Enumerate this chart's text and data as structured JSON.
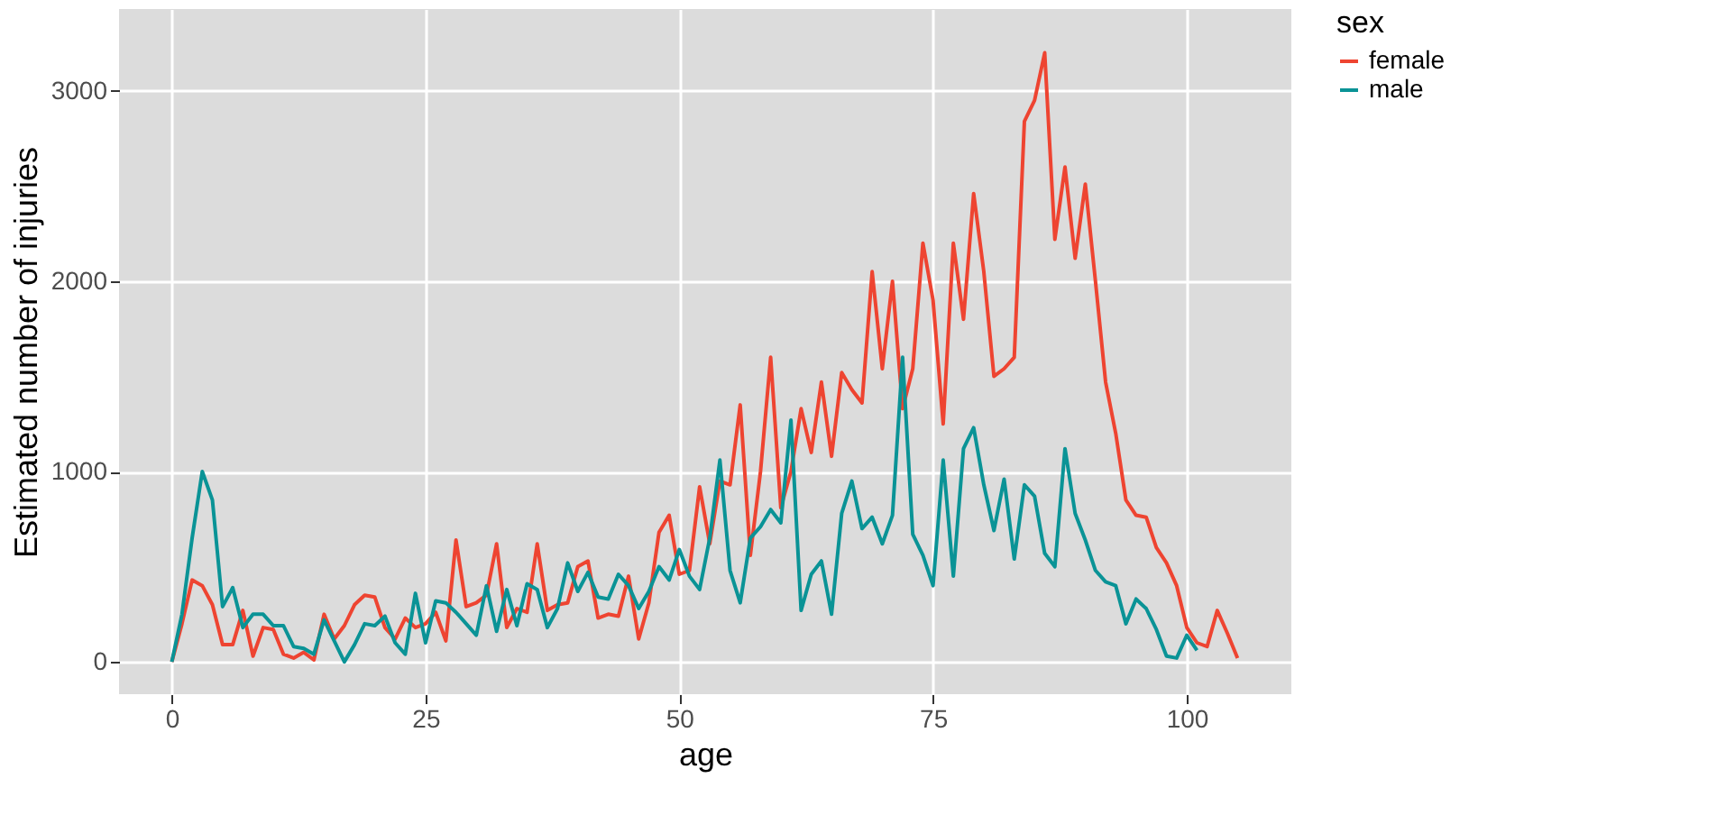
{
  "chart_data": {
    "type": "line",
    "xlabel": "age",
    "ylabel": "Estimated number of injuries",
    "legend_title": "sex",
    "x": [
      0,
      1,
      2,
      3,
      4,
      5,
      6,
      7,
      8,
      9,
      10,
      11,
      12,
      13,
      14,
      15,
      16,
      17,
      18,
      19,
      20,
      21,
      22,
      23,
      24,
      25,
      26,
      27,
      28,
      29,
      30,
      31,
      32,
      33,
      34,
      35,
      36,
      37,
      38,
      39,
      40,
      41,
      42,
      43,
      44,
      45,
      46,
      47,
      48,
      49,
      50,
      51,
      52,
      53,
      54,
      55,
      56,
      57,
      58,
      59,
      60,
      61,
      62,
      63,
      64,
      65,
      66,
      67,
      68,
      69,
      70,
      71,
      72,
      73,
      74,
      75,
      76,
      77,
      78,
      79,
      80,
      81,
      82,
      83,
      84,
      85,
      86,
      87,
      88,
      89,
      90,
      91,
      92,
      93,
      94,
      95,
      96,
      97,
      98,
      99,
      100,
      101,
      102,
      103,
      104,
      105
    ],
    "series": [
      {
        "name": "female",
        "color": "#ee4431",
        "values": [
          0,
          200,
          430,
          400,
          300,
          90,
          90,
          270,
          30,
          180,
          170,
          40,
          20,
          50,
          10,
          250,
          120,
          190,
          300,
          350,
          340,
          180,
          120,
          230,
          180,
          200,
          260,
          110,
          640,
          290,
          310,
          350,
          620,
          180,
          280,
          260,
          620,
          270,
          300,
          310,
          500,
          530,
          230,
          250,
          240,
          450,
          120,
          310,
          680,
          770,
          460,
          480,
          920,
          620,
          950,
          930,
          1350,
          560,
          1000,
          1600,
          810,
          1000,
          1330,
          1100,
          1470,
          1080,
          1520,
          1430,
          1360,
          2050,
          1540,
          2000,
          1330,
          1540,
          2200,
          1900,
          1250,
          2200,
          1800,
          2460,
          2050,
          1500,
          1540,
          1600,
          2840,
          2950,
          3200,
          2220,
          2600,
          2120,
          2510,
          2000,
          1470,
          1200,
          850,
          770,
          760,
          600,
          520,
          400,
          180,
          100,
          80,
          270,
          150,
          20
        ]
      },
      {
        "name": "male",
        "color": "#0a9396",
        "values": [
          0,
          250,
          650,
          1000,
          850,
          290,
          390,
          180,
          250,
          250,
          190,
          190,
          80,
          70,
          40,
          220,
          110,
          0,
          90,
          200,
          190,
          240,
          100,
          40,
          360,
          100,
          320,
          310,
          260,
          200,
          140,
          400,
          160,
          380,
          190,
          410,
          380,
          180,
          280,
          520,
          370,
          470,
          340,
          330,
          460,
          400,
          280,
          370,
          500,
          430,
          590,
          450,
          380,
          650,
          1060,
          480,
          310,
          650,
          710,
          800,
          730,
          1270,
          270,
          460,
          530,
          250,
          780,
          950,
          700,
          760,
          620,
          770,
          1600,
          670,
          560,
          400,
          1060,
          450,
          1120,
          1230,
          930,
          690,
          960,
          540,
          930,
          870,
          570,
          500,
          1120,
          780,
          640,
          480,
          420,
          400,
          200,
          330,
          280,
          170,
          30,
          20,
          140,
          60,
          null,
          null,
          null,
          null
        ]
      }
    ],
    "xlim": [
      -5.2,
      110.3
    ],
    "xticks": [
      0,
      25,
      50,
      75,
      100
    ],
    "ylim": [
      -170,
      3430
    ],
    "yticks": [
      0,
      1000,
      2000,
      3000
    ],
    "grid": true,
    "legend": "right",
    "line_style": "solid",
    "marker": "none"
  }
}
